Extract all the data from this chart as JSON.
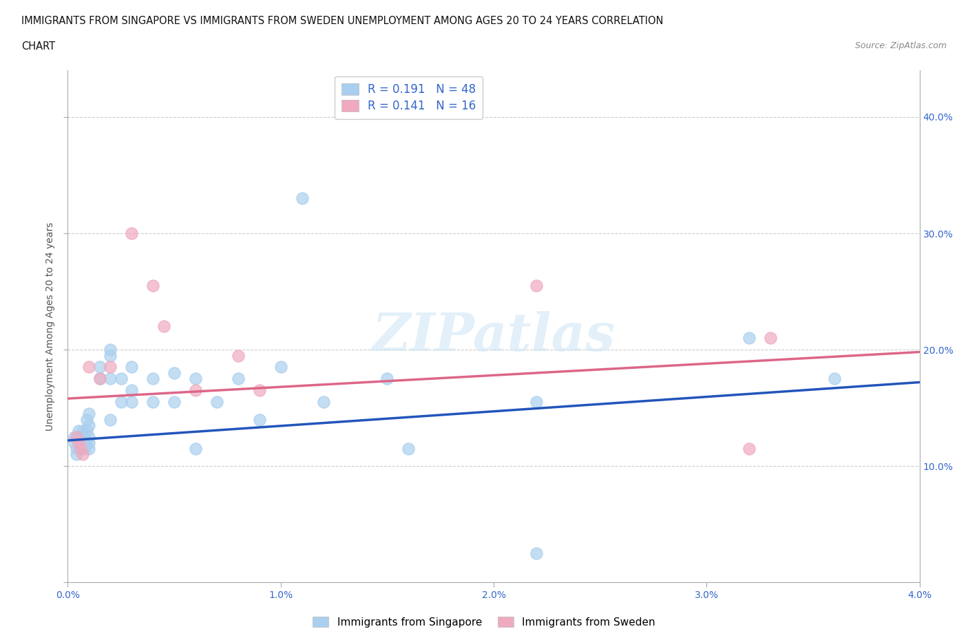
{
  "title_line1": "IMMIGRANTS FROM SINGAPORE VS IMMIGRANTS FROM SWEDEN UNEMPLOYMENT AMONG AGES 20 TO 24 YEARS CORRELATION",
  "title_line2": "CHART",
  "source_text": "Source: ZipAtlas.com",
  "ylabel": "Unemployment Among Ages 20 to 24 years",
  "xlim": [
    0.0,
    0.04
  ],
  "ylim": [
    0.0,
    0.44
  ],
  "xticks": [
    0.0,
    0.01,
    0.02,
    0.03,
    0.04
  ],
  "xtick_labels": [
    "0.0%",
    "1.0%",
    "2.0%",
    "3.0%",
    "4.0%"
  ],
  "yticks": [
    0.0,
    0.1,
    0.2,
    0.3,
    0.4
  ],
  "ytick_labels_right": [
    "",
    "10.0%",
    "20.0%",
    "30.0%",
    "40.0%"
  ],
  "singapore_color": "#aacfee",
  "sweden_color": "#f0aac0",
  "singapore_line_color": "#2255bb",
  "sweden_line_color": "#dd6688",
  "R_singapore": 0.191,
  "N_singapore": 48,
  "R_sweden": 0.141,
  "N_sweden": 16,
  "singapore_x": [
    0.0003,
    0.0003,
    0.0004,
    0.0004,
    0.0005,
    0.0005,
    0.0006,
    0.0006,
    0.0007,
    0.0007,
    0.0008,
    0.0008,
    0.0009,
    0.0009,
    0.001,
    0.001,
    0.001,
    0.001,
    0.001,
    0.0015,
    0.0015,
    0.002,
    0.002,
    0.002,
    0.002,
    0.0025,
    0.0025,
    0.003,
    0.003,
    0.003,
    0.004,
    0.004,
    0.005,
    0.005,
    0.006,
    0.006,
    0.007,
    0.008,
    0.009,
    0.01,
    0.011,
    0.012,
    0.015,
    0.016,
    0.022,
    0.022,
    0.032,
    0.036
  ],
  "singapore_y": [
    0.125,
    0.12,
    0.115,
    0.11,
    0.13,
    0.125,
    0.12,
    0.115,
    0.13,
    0.125,
    0.12,
    0.115,
    0.14,
    0.13,
    0.145,
    0.135,
    0.125,
    0.12,
    0.115,
    0.185,
    0.175,
    0.2,
    0.195,
    0.175,
    0.14,
    0.175,
    0.155,
    0.185,
    0.165,
    0.155,
    0.175,
    0.155,
    0.18,
    0.155,
    0.175,
    0.115,
    0.155,
    0.175,
    0.14,
    0.185,
    0.33,
    0.155,
    0.175,
    0.115,
    0.155,
    0.025,
    0.21,
    0.175
  ],
  "sweden_x": [
    0.0004,
    0.0005,
    0.0006,
    0.0007,
    0.001,
    0.0015,
    0.002,
    0.003,
    0.004,
    0.0045,
    0.006,
    0.008,
    0.009,
    0.022,
    0.032,
    0.033
  ],
  "sweden_y": [
    0.125,
    0.12,
    0.115,
    0.11,
    0.185,
    0.175,
    0.185,
    0.3,
    0.255,
    0.22,
    0.165,
    0.195,
    0.165,
    0.255,
    0.115,
    0.21
  ],
  "sg_trend_x": [
    0.0,
    0.04
  ],
  "sg_trend_y": [
    0.122,
    0.172
  ],
  "sw_trend_x": [
    0.0,
    0.04
  ],
  "sw_trend_y": [
    0.158,
    0.198
  ],
  "watermark": "ZIPatlas",
  "background_color": "#ffffff",
  "grid_color": "#cccccc",
  "tick_color": "#3366cc",
  "legend_label_singapore": "Immigrants from Singapore",
  "legend_label_sweden": "Immigrants from Sweden"
}
